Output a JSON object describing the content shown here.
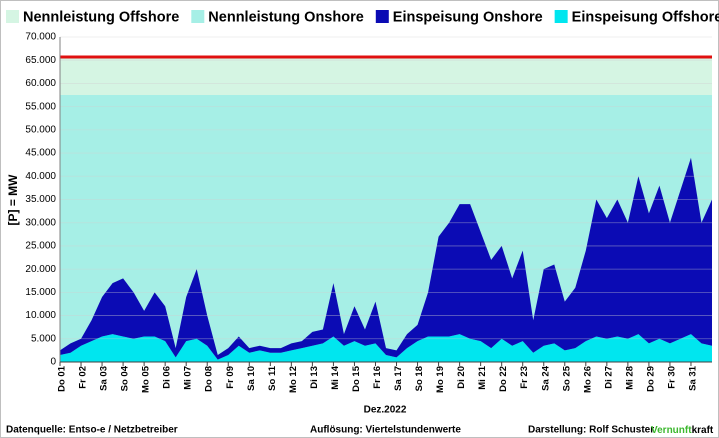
{
  "chart_data": {
    "type": "stacked_area",
    "ylabel": "[P] = MW",
    "xlabel": "Dez.2022",
    "ylim": [
      0,
      70000
    ],
    "yticks": [
      0,
      {
        "value": 5000,
        "label": "5.000"
      },
      {
        "value": 10000,
        "label": "10.000"
      },
      {
        "value": 15000,
        "label": "15.000"
      },
      {
        "value": 20000,
        "label": "20.000"
      },
      {
        "value": 25000,
        "label": "25.000"
      },
      {
        "value": 30000,
        "label": "30.000"
      },
      {
        "value": 35000,
        "label": "35.000"
      },
      {
        "value": 40000,
        "label": "40.000"
      },
      {
        "value": 45000,
        "label": "45.000"
      },
      {
        "value": 50000,
        "label": "50.000"
      },
      {
        "value": 55000,
        "label": "55.000"
      },
      {
        "value": 60000,
        "label": "60.000"
      },
      {
        "value": 65000,
        "label": "65.000"
      },
      {
        "value": 70000,
        "label": "70.000"
      }
    ],
    "xlim": [
      0,
      31
    ],
    "xticks": [
      {
        "value": 0,
        "label": "Do 01"
      },
      {
        "value": 1,
        "label": "Fr 02"
      },
      {
        "value": 2,
        "label": "Sa 03"
      },
      {
        "value": 3,
        "label": "So 04"
      },
      {
        "value": 4,
        "label": "Mo 05"
      },
      {
        "value": 5,
        "label": "Di 06"
      },
      {
        "value": 6,
        "label": "Mi 07"
      },
      {
        "value": 7,
        "label": "Do 08"
      },
      {
        "value": 8,
        "label": "Fr 09"
      },
      {
        "value": 9,
        "label": "Sa 10"
      },
      {
        "value": 10,
        "label": "So 11"
      },
      {
        "value": 11,
        "label": "Mo 12"
      },
      {
        "value": 12,
        "label": "Di 13"
      },
      {
        "value": 13,
        "label": "Mi 14"
      },
      {
        "value": 14,
        "label": "Do 15"
      },
      {
        "value": 15,
        "label": "Fr 16"
      },
      {
        "value": 16,
        "label": "Sa 17"
      },
      {
        "value": 17,
        "label": "So 18"
      },
      {
        "value": 18,
        "label": "Mo 19"
      },
      {
        "value": 19,
        "label": "Di 20"
      },
      {
        "value": 20,
        "label": "Mi 21"
      },
      {
        "value": 21,
        "label": "Do 22"
      },
      {
        "value": 22,
        "label": "Fr 23"
      },
      {
        "value": 23,
        "label": "Sa 24"
      },
      {
        "value": 24,
        "label": "So 25"
      },
      {
        "value": 25,
        "label": "Mo 26"
      },
      {
        "value": 26,
        "label": "Di 27"
      },
      {
        "value": 27,
        "label": "Mi 28"
      },
      {
        "value": 28,
        "label": "Do 29"
      },
      {
        "value": 29,
        "label": "Fr 30"
      },
      {
        "value": 30,
        "label": "Sa 31"
      }
    ],
    "grid": true,
    "legend": "top",
    "series": [
      {
        "name": "Nennleistung Offshore",
        "color": "#d5f5e3",
        "edge_color": "#e01010",
        "stack": "capacity",
        "x": [
          0,
          31
        ],
        "values": [
          8200,
          8200
        ]
      },
      {
        "name": "Nennleistung Onshore",
        "color": "#a6efe6",
        "stack": "capacity",
        "x": [
          0,
          31
        ],
        "values": [
          57500,
          57500
        ]
      },
      {
        "name": "Einspeisung Onshore",
        "color": "#0b0bb4",
        "stack": "feed",
        "x": [
          0,
          0.5,
          1,
          1.5,
          2,
          2.5,
          3,
          3.5,
          4,
          4.5,
          5,
          5.5,
          6,
          6.5,
          7,
          7.5,
          8,
          8.5,
          9,
          9.5,
          10,
          10.5,
          11,
          11.5,
          12,
          12.5,
          13,
          13.5,
          14,
          14.5,
          15,
          15.5,
          16,
          16.5,
          17,
          17.5,
          18,
          18.5,
          19,
          19.5,
          20,
          20.5,
          21,
          21.5,
          22,
          22.5,
          23,
          23.5,
          24,
          24.5,
          25,
          25.5,
          26,
          26.5,
          27,
          27.5,
          28,
          28.5,
          29,
          29.5,
          30,
          30.5,
          31
        ],
        "values": [
          1000,
          2000,
          1500,
          4500,
          8500,
          11000,
          12500,
          10000,
          5500,
          9500,
          7500,
          2000,
          9500,
          15000,
          6500,
          1000,
          1500,
          2000,
          1000,
          1000,
          1000,
          1000,
          1500,
          1500,
          3000,
          3000,
          11500,
          2500,
          7500,
          3500,
          9000,
          1500,
          1500,
          3000,
          3500,
          9500,
          21500,
          24500,
          28000,
          29000,
          23500,
          19000,
          20000,
          14500,
          19500,
          7000,
          16500,
          17000,
          10500,
          13000,
          19500,
          29500,
          26000,
          29500,
          25000,
          34000,
          28000,
          33000,
          26000,
          32000,
          38000,
          26000,
          31500
        ]
      },
      {
        "name": "Einspeisung Offshore",
        "color": "#00e6ef",
        "stack": "feed",
        "x": [
          0,
          0.5,
          1,
          1.5,
          2,
          2.5,
          3,
          3.5,
          4,
          4.5,
          5,
          5.5,
          6,
          6.5,
          7,
          7.5,
          8,
          8.5,
          9,
          9.5,
          10,
          10.5,
          11,
          11.5,
          12,
          12.5,
          13,
          13.5,
          14,
          14.5,
          15,
          15.5,
          16,
          16.5,
          17,
          17.5,
          18,
          18.5,
          19,
          19.5,
          20,
          20.5,
          21,
          21.5,
          22,
          22.5,
          23,
          23.5,
          24,
          24.5,
          25,
          25.5,
          26,
          26.5,
          27,
          27.5,
          28,
          28.5,
          29,
          29.5,
          30,
          30.5,
          31
        ],
        "values": [
          1500,
          2000,
          3500,
          4500,
          5500,
          6000,
          5500,
          5000,
          5500,
          5500,
          4500,
          1000,
          4500,
          5000,
          3500,
          500,
          1500,
          3500,
          2000,
          2500,
          2000,
          2000,
          2500,
          3000,
          3500,
          4000,
          5500,
          3500,
          4500,
          3500,
          4000,
          1500,
          1000,
          3000,
          4500,
          5500,
          5500,
          5500,
          6000,
          5000,
          4500,
          3000,
          5000,
          3500,
          4500,
          2000,
          3500,
          4000,
          2500,
          3000,
          4500,
          5500,
          5000,
          5500,
          5000,
          6000,
          4000,
          5000,
          4000,
          5000,
          6000,
          4000,
          3500
        ]
      }
    ]
  },
  "footer": {
    "source": "Datenquelle:  Entso-e  / Netzbetreiber",
    "resolution": "Auflösung: Viertelstundenwerte",
    "author": "Darstellung:  Rolf Schuster",
    "brand_green": "Vernunft",
    "brand_black": "kraft"
  }
}
